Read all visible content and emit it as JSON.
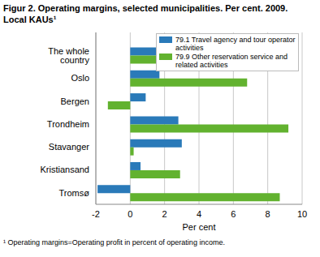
{
  "chart_data": {
    "type": "bar",
    "orientation": "horizontal",
    "title": "Figur 2. Operating margins, selected municipalities. Per cent. 2009. Local KAUs¹",
    "x_label": "Per cent",
    "annotation": "¹ Operating margins=Operating profit in percent of operating income.",
    "categories": [
      "The whole country",
      "Oslo",
      "Bergen",
      "Trondheim",
      "Stavanger",
      "Kristiansand",
      "Tromsø"
    ],
    "series": [
      {
        "name": "79.1 Travel agency and tour operator activities",
        "color": "#2a7ab9",
        "values": [
          1.8,
          1.7,
          0.9,
          2.8,
          3.0,
          0.6,
          -1.9
        ]
      },
      {
        "name": "79.9 Other reservation service and related activities",
        "color": "#62b22f",
        "values": [
          2.2,
          6.8,
          -1.3,
          9.2,
          0.2,
          2.9,
          8.7
        ]
      }
    ],
    "xlim": [
      -2,
      10
    ],
    "xticks": [
      -2,
      0,
      2,
      4,
      6,
      8,
      10
    ],
    "grid": true,
    "legend": "upper right"
  }
}
